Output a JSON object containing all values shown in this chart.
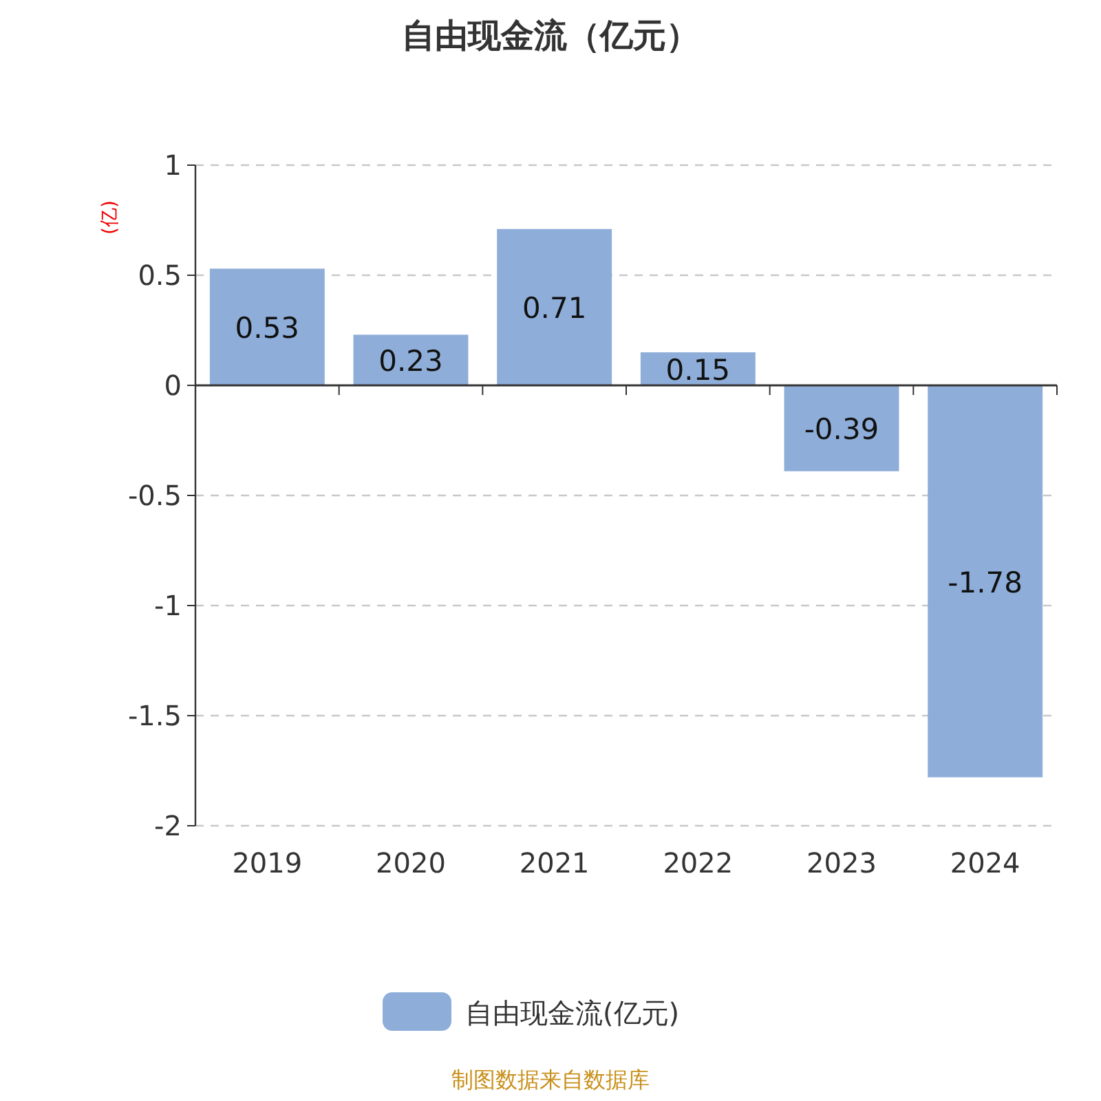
{
  "chart_data": {
    "type": "bar",
    "title": "自由现金流（亿元）",
    "ylabel": "(亿)",
    "categories": [
      "2019",
      "2020",
      "2021",
      "2022",
      "2023",
      "2024"
    ],
    "series": [
      {
        "name": "自由现金流(亿元)",
        "color": "#8eaed9",
        "values": [
          0.53,
          0.23,
          0.71,
          0.15,
          -0.39,
          -1.78
        ]
      }
    ],
    "ylim": [
      -2,
      1
    ],
    "yticks": [
      -2,
      -1.5,
      -1,
      -0.5,
      0,
      0.5,
      1
    ],
    "grid": "y",
    "legend": "bottom",
    "data_labels": true,
    "annotations": [
      "制图数据来自数据库"
    ]
  }
}
